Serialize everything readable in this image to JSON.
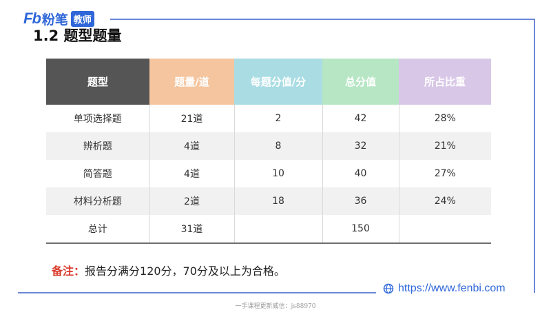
{
  "brand": {
    "logo_letters": "Fb",
    "logo_name": "粉笔",
    "badge": "教师"
  },
  "title": "1.2 题型题量",
  "table": {
    "headers": [
      {
        "label": "题型",
        "color": "#555555"
      },
      {
        "label": "题量/道",
        "color": "#f4c59f"
      },
      {
        "label": "每题分值/分",
        "color": "#a9dce3"
      },
      {
        "label": "总分值",
        "color": "#b6e6c4"
      },
      {
        "label": "所占比重",
        "color": "#d8c7e7"
      }
    ],
    "rows": [
      [
        "单项选择题",
        "21道",
        "2",
        "42",
        "28%"
      ],
      [
        "辨析题",
        "4道",
        "8",
        "32",
        "21%"
      ],
      [
        "简答题",
        "4道",
        "10",
        "40",
        "27%"
      ],
      [
        "材料分析题",
        "2道",
        "18",
        "36",
        "24%"
      ],
      [
        "总计",
        "31道",
        "",
        "150",
        ""
      ]
    ]
  },
  "note": {
    "label": "备注：",
    "text": "报告分满分120分，70分及以上为合格。"
  },
  "url": "https://www.fenbi.com",
  "footer": "一手课程更新威信：js88970",
  "colors": {
    "accent": "#2f67d8",
    "note_label": "#d93a2b",
    "frame": "#6b86d6"
  }
}
